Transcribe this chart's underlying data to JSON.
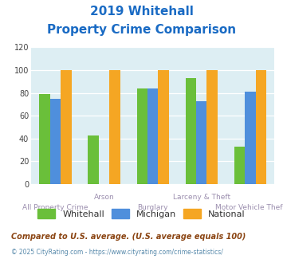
{
  "title_line1": "2019 Whitehall",
  "title_line2": "Property Crime Comparison",
  "categories": [
    "All Property Crime",
    "Arson",
    "Burglary",
    "Larceny & Theft",
    "Motor Vehicle Theft"
  ],
  "whitehall": [
    79,
    43,
    84,
    93,
    33
  ],
  "michigan": [
    75,
    0,
    84,
    73,
    81
  ],
  "national": [
    100,
    100,
    100,
    100,
    100
  ],
  "whitehall_color": "#6abf3a",
  "michigan_color": "#4f8fdc",
  "national_color": "#f5a623",
  "ylim": [
    0,
    120
  ],
  "yticks": [
    0,
    20,
    40,
    60,
    80,
    100,
    120
  ],
  "bg_color": "#ddeef3",
  "title_color": "#1a6bc4",
  "xlabel_color": "#9b8eae",
  "xlabel_top": {
    "1": "Arson",
    "3": "Larceny & Theft"
  },
  "xlabel_bot": {
    "0": "All Property Crime",
    "2": "Burglary",
    "4": "Motor Vehicle Theft"
  },
  "footnote1": "Compared to U.S. average. (U.S. average equals 100)",
  "footnote2": "© 2025 CityRating.com - https://www.cityrating.com/crime-statistics/",
  "footnote1_color": "#8b4513",
  "footnote2_color": "#5588aa",
  "legend_labels": [
    "Whitehall",
    "Michigan",
    "National"
  ]
}
